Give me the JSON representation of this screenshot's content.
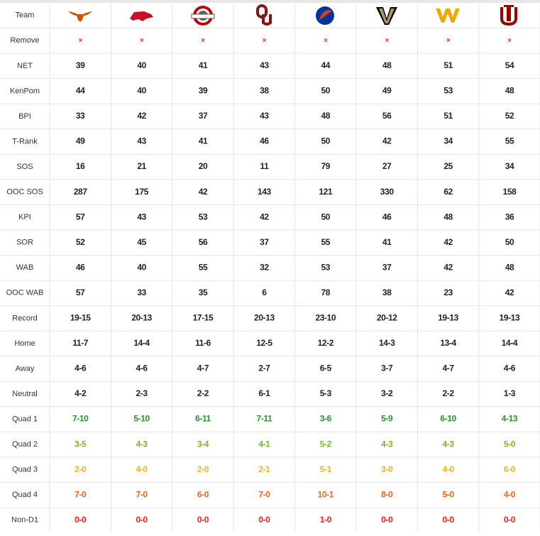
{
  "table": {
    "header": "Team",
    "rows": [
      {
        "label": "Remove",
        "color": "#e0301e",
        "cells": [
          "×",
          "×",
          "×",
          "×",
          "×",
          "×",
          "×",
          "×"
        ]
      },
      {
        "label": "NET",
        "cells": [
          "39",
          "40",
          "41",
          "43",
          "44",
          "48",
          "51",
          "54"
        ]
      },
      {
        "label": "KenPom",
        "cells": [
          "44",
          "40",
          "39",
          "38",
          "50",
          "49",
          "53",
          "48"
        ]
      },
      {
        "label": "BPI",
        "cells": [
          "33",
          "42",
          "37",
          "43",
          "48",
          "56",
          "51",
          "52"
        ]
      },
      {
        "label": "T-Rank",
        "cells": [
          "49",
          "43",
          "41",
          "46",
          "50",
          "42",
          "34",
          "55"
        ]
      },
      {
        "label": "SOS",
        "cells": [
          "16",
          "21",
          "20",
          "11",
          "79",
          "27",
          "25",
          "34"
        ]
      },
      {
        "label": "OOC SOS",
        "cells": [
          "287",
          "175",
          "42",
          "143",
          "121",
          "330",
          "62",
          "158"
        ]
      },
      {
        "label": "KPI",
        "cells": [
          "57",
          "43",
          "53",
          "42",
          "50",
          "46",
          "48",
          "36"
        ]
      },
      {
        "label": "SOR",
        "cells": [
          "52",
          "45",
          "56",
          "37",
          "55",
          "41",
          "42",
          "50"
        ]
      },
      {
        "label": "WAB",
        "cells": [
          "46",
          "40",
          "55",
          "32",
          "53",
          "37",
          "42",
          "48"
        ]
      },
      {
        "label": "OOC WAB",
        "cells": [
          "57",
          "33",
          "35",
          "6",
          "78",
          "38",
          "23",
          "42"
        ]
      },
      {
        "label": "Record",
        "cells": [
          "19-15",
          "20-13",
          "17-15",
          "20-13",
          "23-10",
          "20-12",
          "19-13",
          "19-13"
        ]
      },
      {
        "label": "Home",
        "cells": [
          "11-7",
          "14-4",
          "11-6",
          "12-5",
          "12-2",
          "14-3",
          "13-4",
          "14-4"
        ]
      },
      {
        "label": "Away",
        "cells": [
          "4-6",
          "4-6",
          "4-7",
          "2-7",
          "6-5",
          "3-7",
          "4-7",
          "4-6"
        ]
      },
      {
        "label": "Neutral",
        "cells": [
          "4-2",
          "2-3",
          "2-2",
          "6-1",
          "5-3",
          "3-2",
          "2-2",
          "1-3"
        ]
      },
      {
        "label": "Quad 1",
        "color": "#2f8f2f",
        "cells": [
          "7-10",
          "5-10",
          "6-11",
          "7-11",
          "3-6",
          "5-9",
          "6-10",
          "4-13"
        ]
      },
      {
        "label": "Quad 2",
        "color": "#7ab530",
        "cells": [
          "3-5",
          "4-3",
          "3-4",
          "4-1",
          "5-2",
          "4-3",
          "4-3",
          "5-0"
        ]
      },
      {
        "label": "Quad 3",
        "color": "#f2b233",
        "cells": [
          "2-0",
          "4-0",
          "2-0",
          "2-1",
          "5-1",
          "3-0",
          "4-0",
          "6-0"
        ]
      },
      {
        "label": "Quad 4",
        "color": "#f0621e",
        "cells": [
          "7-0",
          "7-0",
          "6-0",
          "7-0",
          "10-1",
          "8-0",
          "5-0",
          "4-0"
        ]
      },
      {
        "label": "Non-D1",
        "color": "#e0241e",
        "cells": [
          "0-0",
          "0-0",
          "0-0",
          "0-0",
          "1-0",
          "0-0",
          "0-0",
          "0-0"
        ]
      }
    ]
  }
}
